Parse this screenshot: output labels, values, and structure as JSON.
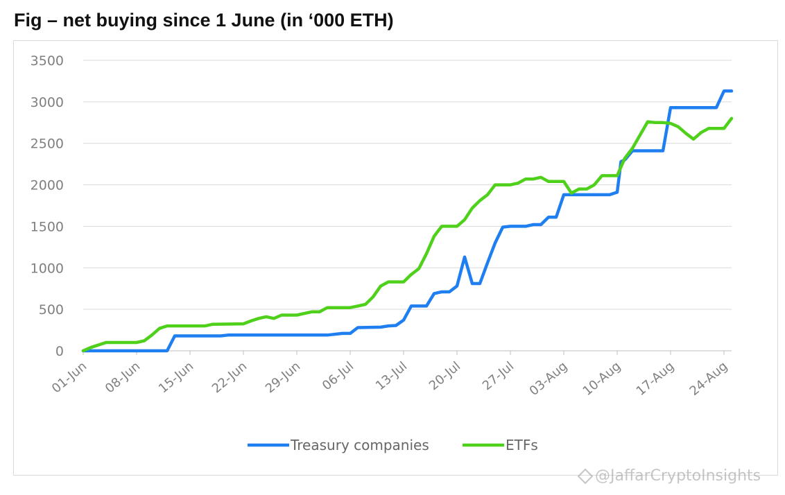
{
  "title": "Fig – net buying since 1 June (in ‘000 ETH)",
  "watermark": "@JaffarCryptoInsights",
  "chart_data": {
    "type": "line",
    "title": "Fig – net buying since 1 June (in ‘000 ETH)",
    "xlabel": "",
    "ylabel": "",
    "ylim": [
      0,
      3500
    ],
    "y_ticks": [
      0,
      500,
      1000,
      1500,
      2000,
      2500,
      3000,
      3500
    ],
    "x_tick_labels": [
      "01-Jun",
      "08-Jun",
      "15-Jun",
      "22-Jun",
      "29-Jun",
      "06-Jul",
      "13-Jul",
      "20-Jul",
      "27-Jul",
      "03-Aug",
      "10-Aug",
      "17-Aug",
      "24-Aug"
    ],
    "x_tick_day_index": [
      0,
      7,
      14,
      21,
      28,
      35,
      42,
      49,
      56,
      63,
      70,
      77,
      84
    ],
    "x_range_days": [
      0,
      85
    ],
    "grid": true,
    "legend_position": "bottom",
    "series": [
      {
        "name": "Treasury companies",
        "color": "#1f7ff0",
        "points": [
          [
            0,
            0
          ],
          [
            11,
            0
          ],
          [
            12,
            180
          ],
          [
            18,
            180
          ],
          [
            19,
            190
          ],
          [
            30,
            190
          ],
          [
            32,
            190
          ],
          [
            34,
            210
          ],
          [
            35,
            210
          ],
          [
            36,
            280
          ],
          [
            39,
            285
          ],
          [
            40,
            300
          ],
          [
            41,
            305
          ],
          [
            42,
            370
          ],
          [
            43,
            540
          ],
          [
            45,
            540
          ],
          [
            46,
            690
          ],
          [
            47,
            710
          ],
          [
            48,
            710
          ],
          [
            49,
            780
          ],
          [
            50,
            1130
          ],
          [
            51,
            810
          ],
          [
            52,
            810
          ],
          [
            53,
            1060
          ],
          [
            54,
            1300
          ],
          [
            55,
            1490
          ],
          [
            56,
            1500
          ],
          [
            58,
            1500
          ],
          [
            59,
            1520
          ],
          [
            60,
            1520
          ],
          [
            61,
            1610
          ],
          [
            62,
            1610
          ],
          [
            63,
            1880
          ],
          [
            69,
            1880
          ],
          [
            70,
            1910
          ],
          [
            70.5,
            2280
          ],
          [
            71,
            2300
          ],
          [
            72,
            2410
          ],
          [
            76,
            2410
          ],
          [
            77,
            2930
          ],
          [
            83,
            2930
          ],
          [
            84,
            3130
          ],
          [
            85,
            3130
          ]
        ]
      },
      {
        "name": "ETFs",
        "color": "#4fd11c",
        "points": [
          [
            0,
            0
          ],
          [
            1,
            40
          ],
          [
            3,
            100
          ],
          [
            7,
            100
          ],
          [
            8,
            120
          ],
          [
            9,
            190
          ],
          [
            10,
            270
          ],
          [
            11,
            300
          ],
          [
            16,
            300
          ],
          [
            17,
            320
          ],
          [
            21,
            325
          ],
          [
            22,
            360
          ],
          [
            23,
            390
          ],
          [
            24,
            410
          ],
          [
            25,
            390
          ],
          [
            26,
            430
          ],
          [
            28,
            430
          ],
          [
            29,
            450
          ],
          [
            30,
            470
          ],
          [
            31,
            470
          ],
          [
            32,
            520
          ],
          [
            35,
            520
          ],
          [
            36,
            540
          ],
          [
            37,
            560
          ],
          [
            38,
            650
          ],
          [
            39,
            780
          ],
          [
            40,
            830
          ],
          [
            42,
            830
          ],
          [
            43,
            920
          ],
          [
            44,
            990
          ],
          [
            45,
            1170
          ],
          [
            46,
            1380
          ],
          [
            47,
            1500
          ],
          [
            49,
            1500
          ],
          [
            50,
            1580
          ],
          [
            51,
            1720
          ],
          [
            52,
            1810
          ],
          [
            53,
            1880
          ],
          [
            54,
            2000
          ],
          [
            56,
            2000
          ],
          [
            57,
            2020
          ],
          [
            58,
            2070
          ],
          [
            59,
            2070
          ],
          [
            60,
            2090
          ],
          [
            61,
            2040
          ],
          [
            63,
            2040
          ],
          [
            64,
            1900
          ],
          [
            65,
            1950
          ],
          [
            66,
            1950
          ],
          [
            67,
            2000
          ],
          [
            68,
            2110
          ],
          [
            70,
            2110
          ],
          [
            71,
            2320
          ],
          [
            72,
            2440
          ],
          [
            73,
            2600
          ],
          [
            74,
            2760
          ],
          [
            75,
            2750
          ],
          [
            76,
            2750
          ],
          [
            77,
            2740
          ],
          [
            78,
            2700
          ],
          [
            79,
            2620
          ],
          [
            80,
            2550
          ],
          [
            81,
            2630
          ],
          [
            82,
            2680
          ],
          [
            84,
            2680
          ],
          [
            85,
            2800
          ]
        ]
      }
    ]
  }
}
